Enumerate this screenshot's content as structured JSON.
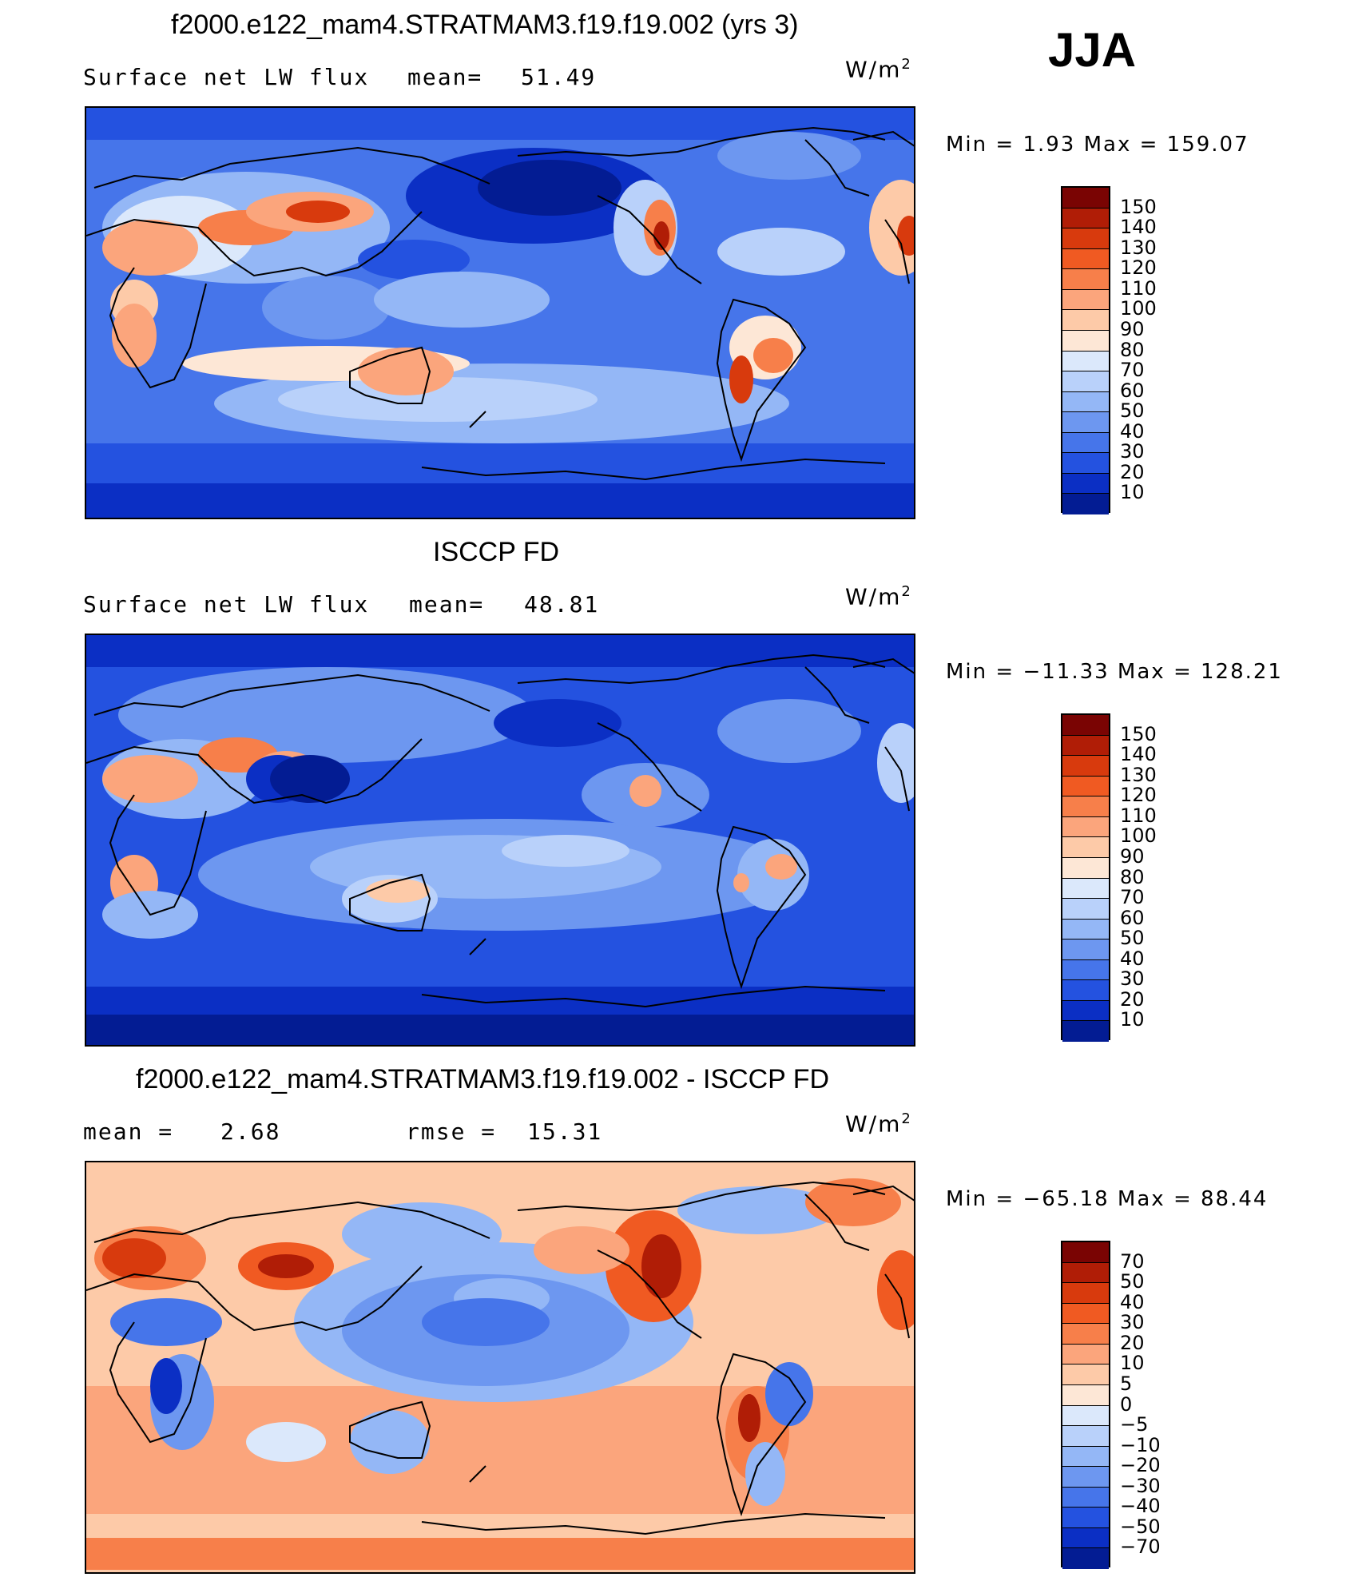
{
  "season": "JJA",
  "panels": [
    {
      "id": "model",
      "title": "f2000.e122_mam4.STRATMAM3.f19.f19.002 (yrs 3)",
      "left_label": "Surface net LW flux",
      "mid_label": "mean=",
      "mid_value": "51.49",
      "units_base": "W/m",
      "units_exp": "2",
      "minmax": "Min =    1.93 Max = 159.07",
      "colorbar_labels": [
        "150",
        "140",
        "130",
        "120",
        "110",
        "100",
        "90",
        "80",
        "70",
        "60",
        "50",
        "40",
        "30",
        "20",
        "10"
      ]
    },
    {
      "id": "obs",
      "title": "ISCCP FD",
      "left_label": "Surface net LW flux",
      "mid_label": "mean=",
      "mid_value": "48.81",
      "units_base": "W/m",
      "units_exp": "2",
      "minmax": "Min = −11.33 Max = 128.21",
      "colorbar_labels": [
        "150",
        "140",
        "130",
        "120",
        "110",
        "100",
        "90",
        "80",
        "70",
        "60",
        "50",
        "40",
        "30",
        "20",
        "10"
      ]
    },
    {
      "id": "diff",
      "title": "f2000.e122_mam4.STRATMAM3.f19.f19.002 - ISCCP FD",
      "left_label": "mean =",
      "left_value": "2.68",
      "mid_label": "rmse =",
      "mid_value": "15.31",
      "units_base": "W/m",
      "units_exp": "2",
      "minmax": "Min = −65.18 Max =  88.44",
      "colorbar_labels": [
        "70",
        "50",
        "40",
        "30",
        "20",
        "10",
        "5",
        "0",
        "−5",
        "−10",
        "−20",
        "−30",
        "−40",
        "−50",
        "−70"
      ]
    }
  ],
  "colors": {
    "absolute_scale": [
      "#7a0403",
      "#b01d06",
      "#d83a0d",
      "#f05a22",
      "#f77f4a",
      "#fba57c",
      "#fdcaa8",
      "#fde7d6",
      "#dbe8fb",
      "#b9d1fa",
      "#94b7f6",
      "#6d97f0",
      "#4675ea",
      "#2452e0",
      "#0b2fc4",
      "#031c93"
    ],
    "diff_scale": [
      "#7a0403",
      "#b01d06",
      "#d83a0d",
      "#f05a22",
      "#f77f4a",
      "#fba57c",
      "#fdcaa8",
      "#fde7d6",
      "#dbe8fb",
      "#b9d1fa",
      "#94b7f6",
      "#6d97f0",
      "#4675ea",
      "#2452e0",
      "#0b2fc4",
      "#031c93"
    ]
  }
}
